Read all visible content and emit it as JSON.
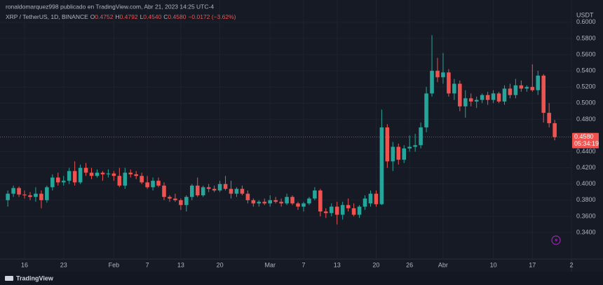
{
  "header": {
    "publisher_line": "ronaldomarquez998 publicado en TradingView.com, Abr 21, 2023 14:25 UTC-4",
    "symbol": "XRP / TetherUS, 1D, BINANCE",
    "o_label": "O",
    "o_value": "0.4752",
    "h_label": "H",
    "h_value": "0.4792",
    "l_label": "L",
    "l_value": "0.4540",
    "c_label": "C",
    "c_value": "0.4580",
    "change": "−0.0172 (−3.62%)"
  },
  "footer": {
    "brand": "TradingView"
  },
  "chart_data": {
    "type": "candlestick",
    "y_unit": "USDT",
    "up_color": "#26a69a",
    "down_color": "#ef5350",
    "grid": true,
    "xlim": [
      -1.4,
      101
    ],
    "ylim": [
      0.3054,
      0.6033
    ],
    "xticks": [
      {
        "value": 3,
        "label": "16"
      },
      {
        "value": 10,
        "label": "23"
      },
      {
        "value": 19,
        "label": "Feb"
      },
      {
        "value": 25,
        "label": "7"
      },
      {
        "value": 31,
        "label": "13"
      },
      {
        "value": 38,
        "label": "20"
      },
      {
        "value": 47,
        "label": "Mar"
      },
      {
        "value": 53,
        "label": "7"
      },
      {
        "value": 59,
        "label": "13"
      },
      {
        "value": 66,
        "label": "20"
      },
      {
        "value": 72,
        "label": "26"
      },
      {
        "value": 78,
        "label": "Abr"
      },
      {
        "value": 87,
        "label": "10"
      },
      {
        "value": 94,
        "label": "17"
      },
      {
        "value": 101,
        "label": "2"
      }
    ],
    "yticks": [
      {
        "value": 0.34,
        "label": "0.3400"
      },
      {
        "value": 0.36,
        "label": "0.3600"
      },
      {
        "value": 0.38,
        "label": "0.3800"
      },
      {
        "value": 0.4,
        "label": "0.4000"
      },
      {
        "value": 0.42,
        "label": "0.4200"
      },
      {
        "value": 0.44,
        "label": "0.4400"
      },
      {
        "value": 0.48,
        "label": "0.4800"
      },
      {
        "value": 0.5,
        "label": "0.5000"
      },
      {
        "value": 0.52,
        "label": "0.5200"
      },
      {
        "value": 0.54,
        "label": "0.5400"
      },
      {
        "value": 0.56,
        "label": "0.5600"
      },
      {
        "value": 0.58,
        "label": "0.5800"
      },
      {
        "value": 0.6,
        "label": "0.6000"
      }
    ],
    "last_price": 0.458,
    "last_price_label": "0.4580",
    "countdown": "05:34:19",
    "open": [
      0.38,
      0.388,
      0.395,
      0.387,
      0.386,
      0.384,
      0.388,
      0.38,
      0.396,
      0.408,
      0.402,
      0.404,
      0.416,
      0.402,
      0.42,
      0.414,
      0.41,
      0.414,
      0.412,
      0.413,
      0.41,
      0.398,
      0.414,
      0.412,
      0.41,
      0.402,
      0.396,
      0.404,
      0.398,
      0.384,
      0.382,
      0.38,
      0.374,
      0.384,
      0.398,
      0.386,
      0.396,
      0.394,
      0.392,
      0.4,
      0.394,
      0.388,
      0.394,
      0.388,
      0.38,
      0.376,
      0.378,
      0.376,
      0.38,
      0.378,
      0.376,
      0.384,
      0.376,
      0.372,
      0.376,
      0.382,
      0.392,
      0.366,
      0.364,
      0.372,
      0.362,
      0.374,
      0.37,
      0.362,
      0.372,
      0.376,
      0.388,
      0.375,
      0.47,
      0.428,
      0.446,
      0.43,
      0.444,
      0.446,
      0.448,
      0.47,
      0.512,
      0.54,
      0.532,
      0.538,
      0.512,
      0.524,
      0.496,
      0.506,
      0.502,
      0.504,
      0.51,
      0.504,
      0.512,
      0.502,
      0.518,
      0.51,
      0.522,
      0.518,
      0.52,
      0.516,
      0.534,
      0.488,
      0.4752
    ],
    "high": [
      0.392,
      0.398,
      0.397,
      0.392,
      0.39,
      0.396,
      0.392,
      0.398,
      0.412,
      0.414,
      0.41,
      0.42,
      0.428,
      0.424,
      0.426,
      0.42,
      0.418,
      0.416,
      0.418,
      0.416,
      0.42,
      0.42,
      0.418,
      0.416,
      0.414,
      0.41,
      0.408,
      0.408,
      0.402,
      0.386,
      0.388,
      0.382,
      0.386,
      0.4,
      0.408,
      0.398,
      0.4,
      0.398,
      0.404,
      0.41,
      0.404,
      0.396,
      0.398,
      0.392,
      0.382,
      0.38,
      0.382,
      0.386,
      0.384,
      0.382,
      0.388,
      0.386,
      0.378,
      0.378,
      0.384,
      0.396,
      0.394,
      0.37,
      0.376,
      0.378,
      0.378,
      0.382,
      0.376,
      0.374,
      0.386,
      0.392,
      0.392,
      0.492,
      0.474,
      0.452,
      0.45,
      0.448,
      0.46,
      0.462,
      0.476,
      0.52,
      0.584,
      0.556,
      0.562,
      0.542,
      0.53,
      0.528,
      0.516,
      0.512,
      0.508,
      0.512,
      0.514,
      0.516,
      0.514,
      0.522,
      0.524,
      0.53,
      0.528,
      0.522,
      0.548,
      0.54,
      0.536,
      0.5,
      0.4792
    ],
    "low": [
      0.372,
      0.384,
      0.384,
      0.382,
      0.38,
      0.378,
      0.37,
      0.377,
      0.392,
      0.398,
      0.398,
      0.4,
      0.398,
      0.4,
      0.41,
      0.406,
      0.408,
      0.404,
      0.408,
      0.404,
      0.396,
      0.394,
      0.408,
      0.406,
      0.4,
      0.394,
      0.392,
      0.396,
      0.38,
      0.378,
      0.378,
      0.368,
      0.366,
      0.38,
      0.384,
      0.384,
      0.39,
      0.39,
      0.39,
      0.392,
      0.382,
      0.384,
      0.386,
      0.376,
      0.372,
      0.372,
      0.374,
      0.372,
      0.376,
      0.372,
      0.374,
      0.374,
      0.368,
      0.366,
      0.374,
      0.38,
      0.36,
      0.358,
      0.36,
      0.35,
      0.356,
      0.366,
      0.36,
      0.358,
      0.368,
      0.372,
      0.372,
      0.374,
      0.42,
      0.416,
      0.424,
      0.426,
      0.44,
      0.44,
      0.444,
      0.464,
      0.508,
      0.526,
      0.524,
      0.508,
      0.504,
      0.49,
      0.482,
      0.496,
      0.494,
      0.5,
      0.498,
      0.5,
      0.5,
      0.498,
      0.506,
      0.506,
      0.514,
      0.514,
      0.514,
      0.51,
      0.476,
      0.47,
      0.454
    ],
    "close": [
      0.388,
      0.395,
      0.387,
      0.386,
      0.384,
      0.388,
      0.38,
      0.396,
      0.408,
      0.402,
      0.404,
      0.416,
      0.402,
      0.42,
      0.414,
      0.41,
      0.414,
      0.412,
      0.413,
      0.41,
      0.398,
      0.414,
      0.412,
      0.41,
      0.402,
      0.396,
      0.404,
      0.398,
      0.384,
      0.382,
      0.38,
      0.374,
      0.384,
      0.398,
      0.386,
      0.396,
      0.394,
      0.392,
      0.4,
      0.394,
      0.388,
      0.394,
      0.388,
      0.38,
      0.376,
      0.378,
      0.376,
      0.38,
      0.378,
      0.376,
      0.384,
      0.376,
      0.372,
      0.376,
      0.382,
      0.392,
      0.366,
      0.364,
      0.372,
      0.362,
      0.374,
      0.37,
      0.362,
      0.372,
      0.382,
      0.388,
      0.375,
      0.47,
      0.428,
      0.446,
      0.43,
      0.444,
      0.446,
      0.448,
      0.47,
      0.512,
      0.54,
      0.532,
      0.538,
      0.512,
      0.524,
      0.496,
      0.506,
      0.502,
      0.504,
      0.51,
      0.504,
      0.512,
      0.502,
      0.518,
      0.51,
      0.522,
      0.518,
      0.52,
      0.516,
      0.534,
      0.488,
      0.4752,
      0.458
    ]
  }
}
